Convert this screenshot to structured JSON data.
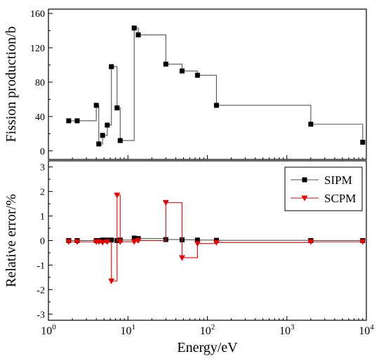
{
  "chart_data": [
    {
      "type": "line",
      "panel": "top",
      "xscale": "log",
      "xlim": [
        1,
        10000
      ],
      "ylim": [
        -10,
        165
      ],
      "ylabel": "Fission production/b",
      "yticks": [
        0,
        40,
        80,
        120,
        160
      ],
      "ytick_labels": [
        "0",
        "40",
        "80",
        "120",
        "160"
      ],
      "minor_yticks": true,
      "grid": false,
      "series": [
        {
          "color": "#555555",
          "marker": "square",
          "step": true,
          "points": [
            [
              1.8,
              35
            ],
            [
              2.3,
              35
            ],
            [
              4.0,
              53
            ],
            [
              4.3,
              8
            ],
            [
              4.8,
              18
            ],
            [
              5.5,
              30
            ],
            [
              6.2,
              98
            ],
            [
              7.3,
              50
            ],
            [
              8.0,
              12
            ],
            [
              12.0,
              143
            ],
            [
              13.5,
              135
            ],
            [
              30,
              101
            ],
            [
              48,
              93
            ],
            [
              75,
              88
            ],
            [
              130,
              53
            ],
            [
              2000,
              31
            ],
            [
              9000,
              10
            ]
          ]
        }
      ]
    },
    {
      "type": "line",
      "panel": "bottom",
      "xscale": "log",
      "xlim": [
        1,
        10000
      ],
      "ylim": [
        -3.25,
        3.25
      ],
      "xlabel": "Energy/eV",
      "ylabel": "Relative error/%",
      "yticks": [
        -3,
        -2,
        -1,
        0,
        1,
        2,
        3
      ],
      "ytick_labels": [
        "-3",
        "-2",
        "-1",
        "0",
        "1",
        "2",
        "3"
      ],
      "minor_yticks": true,
      "xtick_labels": [
        {
          "base": "10",
          "exp": "0"
        },
        {
          "base": "10",
          "exp": "1"
        },
        {
          "base": "10",
          "exp": "2"
        },
        {
          "base": "10",
          "exp": "3"
        },
        {
          "base": "10",
          "exp": "4"
        }
      ],
      "grid": false,
      "legend": "top-right",
      "series": [
        {
          "name": "SIPM",
          "color": "#555555",
          "marker": "square",
          "step": true,
          "points": [
            [
              1.8,
              0.0
            ],
            [
              2.3,
              0.0
            ],
            [
              4.0,
              0.0
            ],
            [
              4.3,
              0.0
            ],
            [
              4.8,
              0.02
            ],
            [
              5.5,
              0.02
            ],
            [
              6.2,
              0.02
            ],
            [
              7.3,
              0.0
            ],
            [
              8.0,
              0.02
            ],
            [
              12.0,
              0.1
            ],
            [
              13.5,
              0.08
            ],
            [
              30,
              0.04
            ],
            [
              48,
              0.03
            ],
            [
              75,
              0.02
            ],
            [
              130,
              0.01
            ],
            [
              2000,
              0.0
            ],
            [
              9000,
              0.0
            ]
          ]
        },
        {
          "name": "SCPM",
          "color": "#ee0000",
          "marker": "triangle-down",
          "step": true,
          "points": [
            [
              1.8,
              -0.05
            ],
            [
              2.3,
              -0.05
            ],
            [
              4.0,
              -0.05
            ],
            [
              4.3,
              -0.05
            ],
            [
              4.8,
              -0.08
            ],
            [
              5.5,
              -0.05
            ],
            [
              6.2,
              -1.65
            ],
            [
              7.3,
              1.85
            ],
            [
              8.0,
              -0.05
            ],
            [
              12.0,
              -0.05
            ],
            [
              13.5,
              0.0
            ],
            [
              30,
              1.55
            ],
            [
              48,
              -0.7
            ],
            [
              75,
              -0.12
            ],
            [
              130,
              -0.08
            ],
            [
              2000,
              -0.05
            ],
            [
              9000,
              -0.05
            ]
          ]
        }
      ]
    }
  ]
}
